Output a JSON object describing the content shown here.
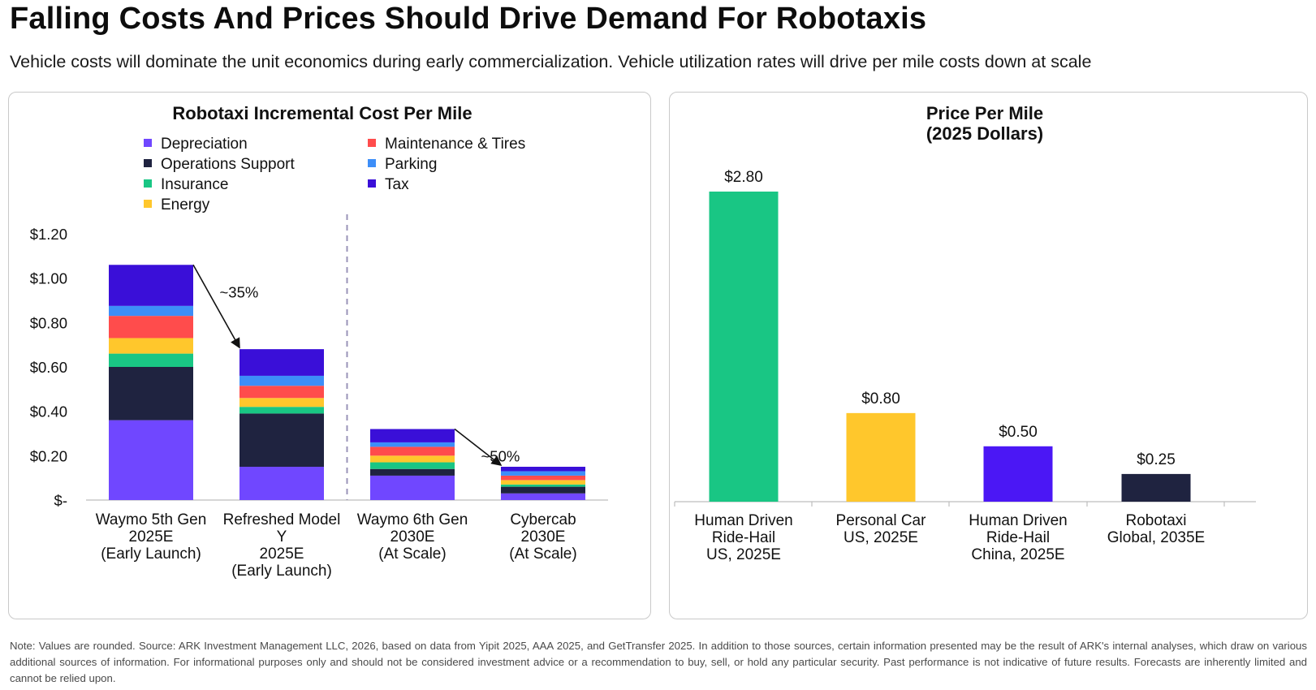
{
  "header": {
    "title": "Falling Costs And Prices Should Drive Demand For Robotaxis",
    "subtitle": "Vehicle costs will dominate the unit economics during early commercialization. Vehicle utilization rates will drive per mile costs down at scale"
  },
  "chart_data": [
    {
      "type": "bar",
      "stacked": true,
      "title": "Robotaxi Incremental Cost Per Mile",
      "xlabel": "",
      "ylabel": "",
      "ylim": [
        0,
        1.2
      ],
      "yticks": [
        "$-",
        "$0.20",
        "$0.40",
        "$0.60",
        "$0.80",
        "$1.00",
        "$1.20"
      ],
      "grid": false,
      "legend_position": "top",
      "categories": [
        [
          "Waymo 5th Gen",
          "2025E",
          "(Early Launch)"
        ],
        [
          "Refreshed Model",
          "Y",
          "2025E",
          "(Early Launch)"
        ],
        [
          "Waymo 6th Gen",
          "2030E",
          "(At Scale)"
        ],
        [
          "Cybercab",
          "2030E",
          "(At Scale)"
        ]
      ],
      "series": [
        {
          "name": "Depreciation",
          "color": "#7047ff",
          "values": [
            0.36,
            0.15,
            0.11,
            0.03
          ]
        },
        {
          "name": "Operations Support",
          "color": "#1f2340",
          "values": [
            0.24,
            0.24,
            0.03,
            0.03
          ]
        },
        {
          "name": "Insurance",
          "color": "#19c684",
          "values": [
            0.06,
            0.03,
            0.03,
            0.01
          ]
        },
        {
          "name": "Energy",
          "color": "#ffc72c",
          "values": [
            0.07,
            0.04,
            0.03,
            0.02
          ]
        },
        {
          "name": "Maintenance & Tires",
          "color": "#ff4c4c",
          "values": [
            0.1,
            0.055,
            0.04,
            0.02
          ]
        },
        {
          "name": "Parking",
          "color": "#3d8ef8",
          "values": [
            0.045,
            0.045,
            0.02,
            0.02
          ]
        },
        {
          "name": "Tax",
          "color": "#3a0fd8",
          "values": [
            0.185,
            0.12,
            0.06,
            0.02
          ]
        }
      ],
      "annotations": [
        {
          "text": "~35%",
          "from": 0,
          "to": 1
        },
        {
          "text": "~50%",
          "from": 2,
          "to": 3
        }
      ]
    },
    {
      "type": "bar",
      "title": "Price Per Mile",
      "subtitle": "(2025 Dollars)",
      "xlabel": "",
      "ylabel": "",
      "ylim": [
        0,
        2.8
      ],
      "grid": false,
      "categories": [
        [
          "Human Driven",
          "Ride-Hail",
          "US, 2025E"
        ],
        [
          "Personal Car",
          "US, 2025E"
        ],
        [
          "Human Driven",
          "Ride-Hail",
          "China, 2025E"
        ],
        [
          "Robotaxi",
          "Global, 2035E"
        ]
      ],
      "values": [
        2.8,
        0.8,
        0.5,
        0.25
      ],
      "data_labels": [
        "$2.80",
        "$0.80",
        "$0.50",
        "$0.25"
      ],
      "colors": [
        "#19c684",
        "#ffc72c",
        "#4b17f5",
        "#1f2340"
      ]
    }
  ],
  "footnote": "Note: Values are rounded. Source: ARK Investment Management LLC, 2026, based on data from Yipit 2025, AAA 2025, and GetTransfer 2025. In addition to those sources, certain information presented may be the result of ARK's internal analyses, which draw on various additional sources of information. For informational purposes only and should not be considered investment advice or a recommendation to buy, sell, or hold any particular security. Past performance is not indicative of future results. Forecasts are inherently limited and cannot be relied upon."
}
